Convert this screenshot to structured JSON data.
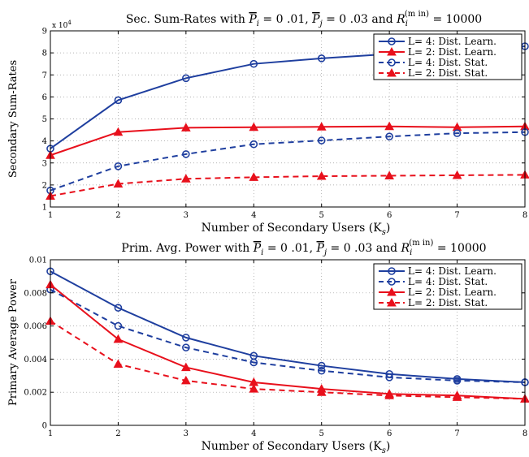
{
  "chart_data": [
    {
      "type": "line",
      "title": "Sec. Sum-Rates with P̄_i = 0.01, P̄_j = 0.03 and R_i^(min) = 10000",
      "title_parts": {
        "lead": "Sec.  Sum-Rates with ",
        "p1": "P",
        "p1_sub": "i",
        "p1_val": " = 0 .01, ",
        "p2": "P",
        "p2_sub": "j",
        "p2_val": " = 0 .03  and  ",
        "r": "R",
        "r_sub": "i",
        "r_sup": "(m in)",
        "r_val": " = 10000"
      },
      "xlabel": "Number of Secondary  Users (K",
      "xlabel_sub": "s",
      "xlabel_close": ")",
      "ylabel": "Secondary  Sum-Rates",
      "y_multiplier": "x 10",
      "y_multiplier_exp": "4",
      "xlim": [
        1,
        8
      ],
      "ylim": [
        1,
        9
      ],
      "x": [
        1,
        2,
        3,
        4,
        5,
        6,
        7,
        8
      ],
      "xticks": [
        "1",
        "2",
        "3",
        "4",
        "5",
        "6",
        "7",
        "8"
      ],
      "yticks": [
        "1",
        "2",
        "3",
        "4",
        "5",
        "6",
        "7",
        "8",
        "9"
      ],
      "grid": true,
      "legend_position": "top-right",
      "series": [
        {
          "name": "L= 4: Dist. Learn.",
          "color": "#1f3f9f",
          "dash": "solid",
          "marker": "circle",
          "values": [
            3.65,
            5.85,
            6.85,
            7.5,
            7.75,
            7.95,
            8.05,
            8.3
          ]
        },
        {
          "name": "L= 2: Dist. Learn.",
          "color": "#e8101c",
          "dash": "solid",
          "marker": "triangle",
          "values": [
            3.35,
            4.4,
            4.6,
            4.62,
            4.64,
            4.66,
            4.62,
            4.66
          ]
        },
        {
          "name": "L= 4: Dist. Stat.",
          "color": "#1f3f9f",
          "dash": "dashed",
          "marker": "circle",
          "values": [
            1.75,
            2.85,
            3.4,
            3.85,
            4.02,
            4.2,
            4.35,
            4.4
          ]
        },
        {
          "name": "L= 2: Dist. Stat.",
          "color": "#e8101c",
          "dash": "dashed",
          "marker": "triangle",
          "values": [
            1.5,
            2.05,
            2.28,
            2.35,
            2.4,
            2.42,
            2.44,
            2.46
          ]
        }
      ]
    },
    {
      "type": "line",
      "title": "Prim. Avg. Power with P̄_i = 0.01, P̄_j = 0.03 and R_i^(min) = 10000",
      "title_parts": {
        "lead": "Prim.  Avg.  Power  with ",
        "p1": "P",
        "p1_sub": "i",
        "p1_val": " = 0 .01, ",
        "p2": "P",
        "p2_sub": "j",
        "p2_val": " = 0 .03  and  ",
        "r": "R",
        "r_sub": "i",
        "r_sup": "(m in)",
        "r_val": " = 10000"
      },
      "xlabel": "Number of Secondary  Users (K",
      "xlabel_sub": "s",
      "xlabel_close": ")",
      "ylabel": "Primary Average  Power",
      "xlim": [
        1,
        8
      ],
      "ylim": [
        0,
        0.01
      ],
      "x": [
        1,
        2,
        3,
        4,
        5,
        6,
        7,
        8
      ],
      "xticks": [
        "1",
        "2",
        "3",
        "4",
        "5",
        "6",
        "7",
        "8"
      ],
      "yticks": [
        "0",
        "0.002",
        "0.004",
        "0.006",
        "0.008",
        "0.01"
      ],
      "grid": true,
      "legend_position": "top-right",
      "series": [
        {
          "name": "L= 4: Dist. Learn.",
          "color": "#1f3f9f",
          "dash": "solid",
          "marker": "circle",
          "values": [
            0.0093,
            0.0071,
            0.0053,
            0.0042,
            0.0036,
            0.0031,
            0.0028,
            0.0026
          ]
        },
        {
          "name": "L= 4: Dist. Stat.",
          "color": "#1f3f9f",
          "dash": "dashed",
          "marker": "circle",
          "values": [
            0.0082,
            0.006,
            0.0047,
            0.0038,
            0.0033,
            0.0029,
            0.0027,
            0.0026
          ]
        },
        {
          "name": "L= 2: Dist. Learn.",
          "color": "#e8101c",
          "dash": "solid",
          "marker": "triangle",
          "values": [
            0.0085,
            0.0052,
            0.0035,
            0.0026,
            0.0022,
            0.0019,
            0.0018,
            0.0016
          ]
        },
        {
          "name": "L= 2: Dist. Stat.",
          "color": "#e8101c",
          "dash": "dashed",
          "marker": "triangle",
          "values": [
            0.0063,
            0.0037,
            0.0027,
            0.0022,
            0.002,
            0.0018,
            0.0017,
            0.0016
          ]
        }
      ]
    }
  ]
}
